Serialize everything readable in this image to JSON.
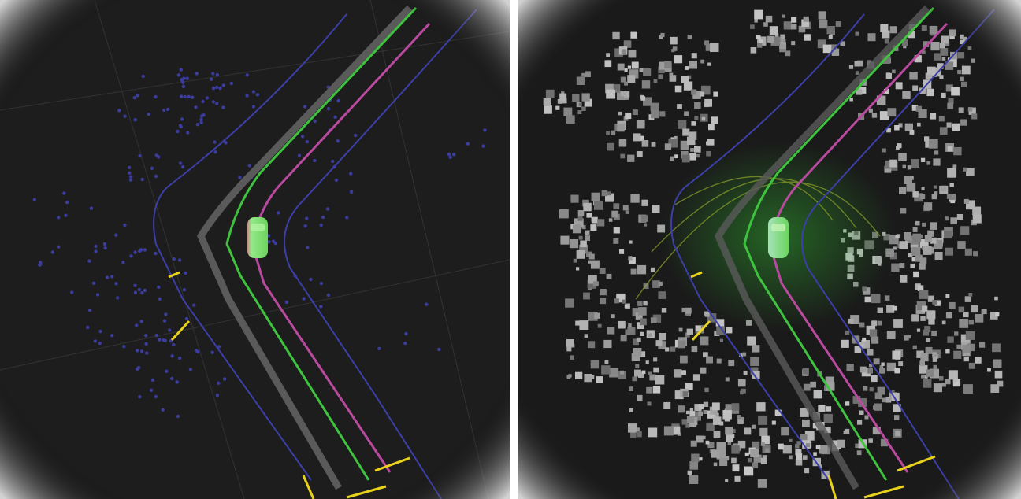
{
  "views": [
    {
      "id": "left",
      "layer": "lane-map-with-landmarks",
      "point_color": "#3b3c9c",
      "background": "#1d1d1d"
    },
    {
      "id": "right",
      "layer": "lane-map-with-lidar-pointcloud",
      "point_color": "#c8c8c8",
      "background": "#1a1a1a"
    }
  ],
  "colors": {
    "road_boundary": "#3d3fa8",
    "centerline": "#5d5d5d",
    "planned_path": "#3fc33f",
    "reference_line": "#b94aa0",
    "stop_marker": "#e8d21c",
    "ego_vehicle": "#8fe37a",
    "grid": "#3a3a3a"
  },
  "icons": {
    "ego": "car-icon"
  }
}
